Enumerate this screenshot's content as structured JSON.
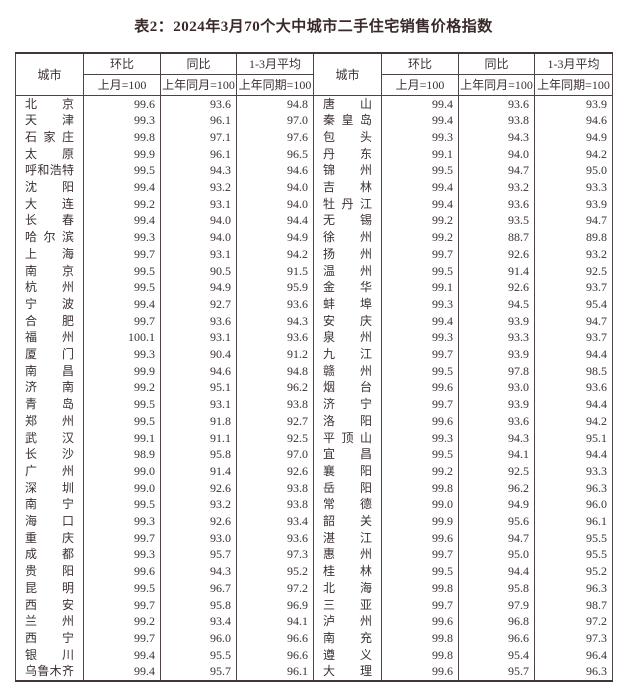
{
  "title": "表2：2024年3月70个大中城市二手住宅销售价格指数",
  "colors": {
    "background": "#ffffff",
    "text": "#3b3032",
    "border": "#4d4345"
  },
  "table": {
    "header": {
      "city": "城市",
      "mom": "环比",
      "mom_base": "上月=100",
      "yoy": "同比",
      "yoy_base": "上年同月=100",
      "avg": "1-3月平均",
      "avg_base": "上年同期=100"
    },
    "rows": [
      {
        "l": [
          "北京",
          "99.6",
          "93.6",
          "94.8"
        ],
        "r": [
          "唐山",
          "99.4",
          "93.6",
          "93.9"
        ]
      },
      {
        "l": [
          "天津",
          "99.3",
          "96.1",
          "97.0"
        ],
        "r": [
          "秦皇岛",
          "99.4",
          "93.8",
          "94.6"
        ]
      },
      {
        "l": [
          "石家庄",
          "99.8",
          "97.1",
          "97.6"
        ],
        "r": [
          "包头",
          "99.3",
          "94.3",
          "94.9"
        ]
      },
      {
        "l": [
          "太原",
          "99.9",
          "96.1",
          "96.5"
        ],
        "r": [
          "丹东",
          "99.1",
          "94.0",
          "94.2"
        ]
      },
      {
        "l": [
          "呼和浩特",
          "99.5",
          "94.3",
          "94.6"
        ],
        "r": [
          "锦州",
          "99.5",
          "94.7",
          "95.0"
        ]
      },
      {
        "l": [
          "沈阳",
          "99.4",
          "93.2",
          "94.0"
        ],
        "r": [
          "吉林",
          "99.4",
          "93.2",
          "93.3"
        ]
      },
      {
        "l": [
          "大连",
          "99.2",
          "93.1",
          "94.0"
        ],
        "r": [
          "牡丹江",
          "99.4",
          "93.6",
          "93.9"
        ]
      },
      {
        "l": [
          "长春",
          "99.4",
          "94.0",
          "94.4"
        ],
        "r": [
          "无锡",
          "99.2",
          "93.5",
          "94.7"
        ]
      },
      {
        "l": [
          "哈尔滨",
          "99.3",
          "94.0",
          "94.9"
        ],
        "r": [
          "徐州",
          "99.2",
          "88.7",
          "89.8"
        ]
      },
      {
        "l": [
          "上海",
          "99.7",
          "93.1",
          "94.2"
        ],
        "r": [
          "扬州",
          "99.7",
          "92.6",
          "93.2"
        ]
      },
      {
        "l": [
          "南京",
          "99.5",
          "90.5",
          "91.5"
        ],
        "r": [
          "温州",
          "99.5",
          "91.4",
          "92.5"
        ]
      },
      {
        "l": [
          "杭州",
          "99.5",
          "94.9",
          "95.9"
        ],
        "r": [
          "金华",
          "99.1",
          "92.6",
          "93.7"
        ]
      },
      {
        "l": [
          "宁波",
          "99.4",
          "92.7",
          "93.6"
        ],
        "r": [
          "蚌埠",
          "99.3",
          "94.5",
          "95.4"
        ]
      },
      {
        "l": [
          "合肥",
          "99.7",
          "93.6",
          "94.3"
        ],
        "r": [
          "安庆",
          "99.4",
          "93.9",
          "94.7"
        ]
      },
      {
        "l": [
          "福州",
          "100.1",
          "93.1",
          "93.6"
        ],
        "r": [
          "泉州",
          "99.3",
          "93.3",
          "93.7"
        ]
      },
      {
        "l": [
          "厦门",
          "99.3",
          "90.4",
          "91.2"
        ],
        "r": [
          "九江",
          "99.7",
          "93.9",
          "94.4"
        ]
      },
      {
        "l": [
          "南昌",
          "99.9",
          "94.6",
          "94.8"
        ],
        "r": [
          "赣州",
          "99.5",
          "97.8",
          "98.5"
        ]
      },
      {
        "l": [
          "济南",
          "99.2",
          "95.1",
          "96.2"
        ],
        "r": [
          "烟台",
          "99.6",
          "93.0",
          "93.6"
        ]
      },
      {
        "l": [
          "青岛",
          "99.5",
          "93.1",
          "93.8"
        ],
        "r": [
          "济宁",
          "99.7",
          "93.9",
          "94.4"
        ]
      },
      {
        "l": [
          "郑州",
          "99.5",
          "91.8",
          "92.7"
        ],
        "r": [
          "洛阳",
          "99.6",
          "93.6",
          "94.2"
        ]
      },
      {
        "l": [
          "武汉",
          "99.1",
          "91.1",
          "92.5"
        ],
        "r": [
          "平顶山",
          "99.3",
          "94.3",
          "95.1"
        ]
      },
      {
        "l": [
          "长沙",
          "98.9",
          "95.8",
          "97.0"
        ],
        "r": [
          "宜昌",
          "99.5",
          "94.1",
          "94.4"
        ]
      },
      {
        "l": [
          "广州",
          "99.0",
          "91.4",
          "92.6"
        ],
        "r": [
          "襄阳",
          "99.2",
          "92.5",
          "93.3"
        ]
      },
      {
        "l": [
          "深圳",
          "99.0",
          "92.6",
          "93.8"
        ],
        "r": [
          "岳阳",
          "99.8",
          "96.2",
          "96.3"
        ]
      },
      {
        "l": [
          "南宁",
          "99.5",
          "93.2",
          "93.8"
        ],
        "r": [
          "常德",
          "99.0",
          "94.9",
          "96.0"
        ]
      },
      {
        "l": [
          "海口",
          "99.3",
          "92.6",
          "93.4"
        ],
        "r": [
          "韶关",
          "99.9",
          "95.6",
          "96.1"
        ]
      },
      {
        "l": [
          "重庆",
          "99.7",
          "93.0",
          "93.6"
        ],
        "r": [
          "湛江",
          "99.6",
          "94.7",
          "95.5"
        ]
      },
      {
        "l": [
          "成都",
          "99.3",
          "95.7",
          "97.3"
        ],
        "r": [
          "惠州",
          "99.7",
          "95.0",
          "95.5"
        ]
      },
      {
        "l": [
          "贵阳",
          "99.6",
          "94.3",
          "95.2"
        ],
        "r": [
          "桂林",
          "99.5",
          "94.4",
          "95.2"
        ]
      },
      {
        "l": [
          "昆明",
          "99.5",
          "96.7",
          "97.2"
        ],
        "r": [
          "北海",
          "99.8",
          "95.8",
          "96.3"
        ]
      },
      {
        "l": [
          "西安",
          "99.7",
          "95.8",
          "96.9"
        ],
        "r": [
          "三亚",
          "99.7",
          "97.9",
          "98.7"
        ]
      },
      {
        "l": [
          "兰州",
          "99.2",
          "93.4",
          "94.1"
        ],
        "r": [
          "泸州",
          "99.6",
          "96.8",
          "97.2"
        ]
      },
      {
        "l": [
          "西宁",
          "99.7",
          "96.0",
          "96.6"
        ],
        "r": [
          "南充",
          "99.8",
          "96.6",
          "97.3"
        ]
      },
      {
        "l": [
          "银川",
          "99.4",
          "95.5",
          "96.6"
        ],
        "r": [
          "遵义",
          "99.8",
          "95.4",
          "96.4"
        ]
      },
      {
        "l": [
          "乌鲁木齐",
          "99.4",
          "95.7",
          "96.1"
        ],
        "r": [
          "大理",
          "99.6",
          "95.7",
          "96.3"
        ]
      }
    ]
  }
}
